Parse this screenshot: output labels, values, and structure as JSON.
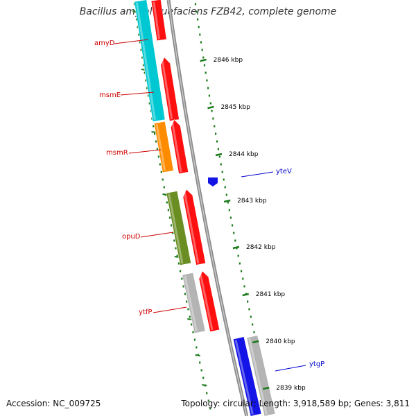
{
  "title": "Bacillus amyloliquefaciens FZB42, complete genome",
  "footer": {
    "accession": "Accession: NC_009725",
    "topology": "Topology: circular; Length: 3,918,589 bp; Genes: 3,811"
  },
  "colors": {
    "reverse_label": "#cc0000",
    "forward_label": "#0000cc",
    "ticks": "#1a7a1a",
    "backbone": "#8c8c8c"
  },
  "ticks": [
    "2846 kbp",
    "2845 kbp",
    "2844 kbp",
    "2843 kbp",
    "2842 kbp",
    "2841 kbp",
    "2840 kbp",
    "2839 kbp"
  ],
  "labels": [
    {
      "text": "amyD",
      "strand": "reverse"
    },
    {
      "text": "msmE",
      "strand": "reverse"
    },
    {
      "text": "msmR",
      "strand": "reverse"
    },
    {
      "text": "opuD",
      "strand": "reverse"
    },
    {
      "text": "ytfP",
      "strand": "reverse"
    },
    {
      "text": "yteV",
      "strand": "forward"
    },
    {
      "text": "ytgP",
      "strand": "forward"
    }
  ]
}
